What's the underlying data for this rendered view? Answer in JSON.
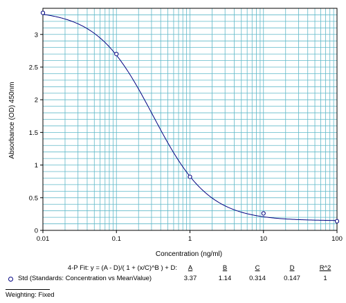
{
  "chart_data": {
    "type": "scatter",
    "x_scale": "log",
    "xlim": [
      0.01,
      100
    ],
    "ylim": [
      0,
      3.4
    ],
    "xlabel": "Concentration (ng/ml)",
    "ylabel": "Absorbance (OD) 450nm",
    "x_tick_labels": [
      "0.01",
      "0.1",
      "1",
      "10",
      "100"
    ],
    "x_ticks": [
      0.01,
      0.1,
      1,
      10,
      100
    ],
    "y_tick_labels": [
      "0",
      "0.5",
      "1",
      "1.5",
      "2",
      "2.5",
      "3"
    ],
    "y_ticks": [
      0,
      0.5,
      1,
      1.5,
      2,
      2.5,
      3
    ],
    "grid": true,
    "grid_color": "#5fb8c8",
    "curve_color": "#000080",
    "series": [
      {
        "name": "Std (Standards: Concentration vs MeanValue)",
        "x": [
          0.01,
          0.1,
          1,
          10,
          100
        ],
        "y": [
          3.33,
          2.7,
          0.82,
          0.26,
          0.14
        ]
      }
    ],
    "fit": {
      "model": "4-P",
      "A": 3.37,
      "B": 1.14,
      "C": 0.314,
      "D": 0.147
    }
  },
  "fit_table": {
    "equation_label": "4-P Fit: y = (A - D)/( 1 + (x/C)^B ) + D:",
    "headers": [
      "A",
      "B",
      "C",
      "D",
      "R^2"
    ],
    "row_label": "Std (Standards: Concentration vs MeanValue)",
    "values": [
      "3.37",
      "1.14",
      "0.314",
      "0.147",
      "1"
    ]
  },
  "weighting": "Weighting: Fixed"
}
